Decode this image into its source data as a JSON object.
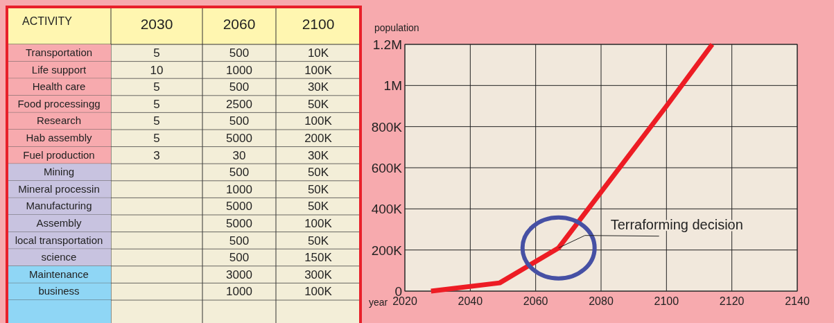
{
  "chart_data": [
    {
      "type": "other",
      "ylabel": "ACTIVITY",
      "categories": [
        "2030",
        "2060",
        "2100"
      ],
      "y_categories": [
        "Transportation",
        "Life support",
        "Health care",
        "Food processingg",
        "Research",
        "Hab assembly",
        "Fuel production",
        "Mining",
        "Mineral processin",
        "Manufacturing",
        "Assembly",
        "local transportation",
        "science",
        "Maintenance",
        "business"
      ],
      "cell_labels": [
        [
          "5",
          "500",
          "10K"
        ],
        [
          "10",
          "1000",
          "100K"
        ],
        [
          "5",
          "500",
          "30K"
        ],
        [
          "5",
          "2500",
          "50K"
        ],
        [
          "5",
          "500",
          "100K"
        ],
        [
          "5",
          "5000",
          "200K"
        ],
        [
          "3",
          "30",
          "30K"
        ],
        [
          null,
          "500",
          "50K"
        ],
        [
          null,
          "1000",
          "50K"
        ],
        [
          null,
          "5000",
          "50K"
        ],
        [
          null,
          "5000",
          "100K"
        ],
        [
          null,
          "500",
          "50K"
        ],
        [
          null,
          "500",
          "150K"
        ],
        [
          null,
          "3000",
          "300K"
        ],
        [
          null,
          "1000",
          "100K"
        ]
      ]
    },
    {
      "type": "line",
      "xlabel": "year",
      "ylabel": "population",
      "x": [
        2028,
        2049,
        2067,
        2100,
        2114
      ],
      "values": [
        0,
        40000,
        210000,
        900000,
        1200000
      ],
      "color": "#ed1c24",
      "xlim": [
        2020,
        2140
      ],
      "xticks": [
        2020,
        2040,
        2060,
        2080,
        2100,
        2120,
        2140
      ],
      "ylim": [
        0,
        1200000
      ],
      "yticks": [
        0,
        {
          "value": 200000,
          "label": "200K"
        },
        {
          "value": 400000,
          "label": "400K"
        },
        {
          "value": 600000,
          "label": "600K"
        },
        {
          "value": 800000,
          "label": "800K"
        },
        {
          "value": 1000000,
          "label": "1M"
        },
        {
          "value": 1200000,
          "label": "1.2M"
        }
      ],
      "grid": true,
      "annotations": [
        {
          "text": "Terraforming decision",
          "x": 2067,
          "y": 210000
        }
      ]
    }
  ]
}
